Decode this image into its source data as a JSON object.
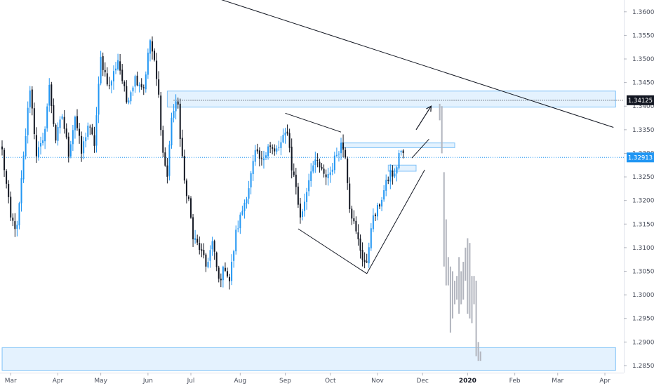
{
  "chart_data": {
    "type": "candlestick",
    "title": "",
    "ylim": [
      1.2835,
      1.3625
    ],
    "y_ticks": [
      "1.36000",
      "1.35500",
      "1.35000",
      "1.34500",
      "1.34000",
      "1.33500",
      "1.33000",
      "1.32500",
      "1.32000",
      "1.31500",
      "1.31000",
      "1.30500",
      "1.30000",
      "1.29500",
      "1.29000",
      "1.28500"
    ],
    "x_ticks": [
      {
        "label": "Mar",
        "bar": 4
      },
      {
        "label": "Apr",
        "bar": 26
      },
      {
        "label": "May",
        "bar": 46
      },
      {
        "label": "Jun",
        "bar": 68
      },
      {
        "label": "Jul",
        "bar": 88
      },
      {
        "label": "Aug",
        "bar": 111
      },
      {
        "label": "Sep",
        "bar": 132
      },
      {
        "label": "Oct",
        "bar": 153
      },
      {
        "label": "Nov",
        "bar": 175
      },
      {
        "label": "Dec",
        "bar": 196
      },
      {
        "label": "2020",
        "bar": 217,
        "bold": true
      },
      {
        "label": "Feb",
        "bar": 239
      },
      {
        "label": "Mar",
        "bar": 259
      },
      {
        "label": "Apr",
        "bar": 281
      }
    ],
    "price_badges": [
      {
        "label": "1.34125",
        "price": 1.34125,
        "color": "#131722"
      },
      {
        "label": "1.32913",
        "price": 1.32913,
        "color": "#2196f3"
      }
    ],
    "price_path": [
      [
        0,
        1.3305
      ],
      [
        4,
        1.316
      ],
      [
        7,
        1.314
      ],
      [
        10,
        1.329
      ],
      [
        13,
        1.344
      ],
      [
        16,
        1.33
      ],
      [
        19,
        1.332
      ],
      [
        22,
        1.344
      ],
      [
        25,
        1.333
      ],
      [
        28,
        1.338
      ],
      [
        31,
        1.33
      ],
      [
        34,
        1.338
      ],
      [
        37,
        1.33
      ],
      [
        40,
        1.336
      ],
      [
        43,
        1.332
      ],
      [
        46,
        1.35
      ],
      [
        50,
        1.344
      ],
      [
        54,
        1.35
      ],
      [
        58,
        1.341
      ],
      [
        62,
        1.346
      ],
      [
        66,
        1.344
      ],
      [
        69,
        1.354
      ],
      [
        71,
        1.349
      ],
      [
        73,
        1.342
      ],
      [
        75,
        1.33
      ],
      [
        77,
        1.325
      ],
      [
        79,
        1.338
      ],
      [
        82,
        1.341
      ],
      [
        83,
        1.333
      ],
      [
        85,
        1.324
      ],
      [
        87,
        1.32
      ],
      [
        89,
        1.312
      ],
      [
        92,
        1.31
      ],
      [
        95,
        1.306
      ],
      [
        98,
        1.311
      ],
      [
        101,
        1.303
      ],
      [
        104,
        1.306
      ],
      [
        106,
        1.303
      ],
      [
        109,
        1.313
      ],
      [
        112,
        1.318
      ],
      [
        115,
        1.323
      ],
      [
        118,
        1.33
      ],
      [
        121,
        1.328
      ],
      [
        124,
        1.332
      ],
      [
        127,
        1.33
      ],
      [
        130,
        1.332
      ],
      [
        133,
        1.335
      ],
      [
        135,
        1.327
      ],
      [
        137,
        1.323
      ],
      [
        139,
        1.316
      ],
      [
        141,
        1.32
      ],
      [
        144,
        1.327
      ],
      [
        147,
        1.328
      ],
      [
        150,
        1.325
      ],
      [
        153,
        1.326
      ],
      [
        156,
        1.33
      ],
      [
        158,
        1.332
      ],
      [
        160,
        1.33
      ],
      [
        162,
        1.319
      ],
      [
        165,
        1.313
      ],
      [
        168,
        1.308
      ],
      [
        170,
        1.306
      ],
      [
        172,
        1.315
      ],
      [
        175,
        1.318
      ],
      [
        178,
        1.322
      ],
      [
        181,
        1.326
      ],
      [
        183,
        1.325
      ],
      [
        185,
        1.33
      ],
      [
        187,
        1.33
      ]
    ],
    "projection_bars": [
      {
        "bar": 204,
        "high": 1.3405,
        "low": 1.337
      },
      {
        "bar": 205,
        "high": 1.34,
        "low": 1.33
      },
      {
        "bar": 206,
        "high": 1.326,
        "low": 1.306
      },
      {
        "bar": 207,
        "high": 1.316,
        "low": 1.302
      },
      {
        "bar": 208,
        "high": 1.308,
        "low": 1.302
      },
      {
        "bar": 209,
        "high": 1.306,
        "low": 1.292
      },
      {
        "bar": 210,
        "high": 1.305,
        "low": 1.295
      },
      {
        "bar": 211,
        "high": 1.303,
        "low": 1.298
      },
      {
        "bar": 212,
        "high": 1.304,
        "low": 1.299
      },
      {
        "bar": 213,
        "high": 1.308,
        "low": 1.296
      },
      {
        "bar": 214,
        "high": 1.305,
        "low": 1.298
      },
      {
        "bar": 215,
        "high": 1.307,
        "low": 1.299
      },
      {
        "bar": 216,
        "high": 1.31,
        "low": 1.303
      },
      {
        "bar": 217,
        "high": 1.312,
        "low": 1.296
      },
      {
        "bar": 218,
        "high": 1.311,
        "low": 1.295
      },
      {
        "bar": 219,
        "high": 1.304,
        "low": 1.294
      },
      {
        "bar": 220,
        "high": 1.304,
        "low": 1.298
      },
      {
        "bar": 221,
        "high": 1.303,
        "low": 1.287
      },
      {
        "bar": 222,
        "high": 1.29,
        "low": 1.286
      },
      {
        "bar": 223,
        "high": 1.288,
        "low": 1.286
      }
    ],
    "zones": [
      {
        "x1": 77,
        "x2": 286,
        "p1": 1.3432,
        "p2": 1.3398
      },
      {
        "x1": 0,
        "x2": 286,
        "p1": 1.2888,
        "p2": 1.284
      },
      {
        "x1": 158,
        "x2": 211,
        "p1": 1.3322,
        "p2": 1.3312
      },
      {
        "x1": 180,
        "x2": 193,
        "p1": 1.3275,
        "p2": 1.3262
      }
    ],
    "trendlines": [
      {
        "x1": -2,
        "p1": 1.378,
        "x2": 285,
        "p2": 1.3355
      },
      {
        "x1": 132,
        "p1": 1.3385,
        "x2": 158,
        "p2": 1.3345
      },
      {
        "x1": 138,
        "p1": 1.314,
        "x2": 170,
        "p2": 1.3045
      },
      {
        "x1": 170,
        "p1": 1.3045,
        "x2": 197,
        "p2": 1.3265
      },
      {
        "x1": 191,
        "p1": 1.329,
        "x2": 199,
        "p2": 1.333
      }
    ],
    "arrow": {
      "x1": 193,
      "p1": 1.335,
      "x2": 200,
      "p2": 1.34
    },
    "hlines": [
      {
        "price": 1.34125,
        "x1": 80,
        "style": "dotted-dark"
      },
      {
        "price": 1.32913,
        "x1": 0,
        "style": "dotted-blue"
      }
    ]
  }
}
